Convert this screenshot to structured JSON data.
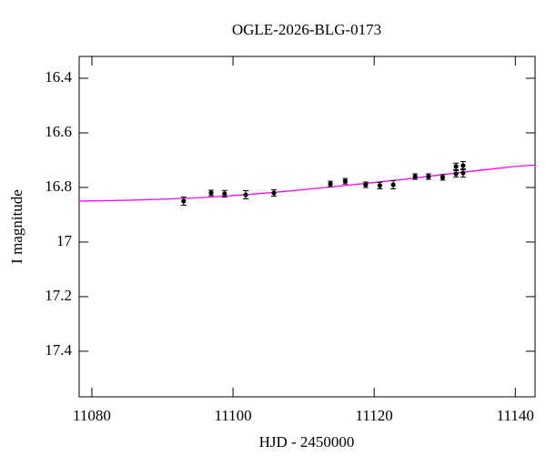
{
  "chart_data": {
    "type": "scatter",
    "title": "OGLE-2026-BLG-0173",
    "xlabel": "HJD - 2450000",
    "ylabel": "I magnitude",
    "xlim": [
      11078.2,
      11142.8
    ],
    "ylim": [
      17.567,
      16.32
    ],
    "xticks": [
      11080,
      11100,
      11120,
      11140
    ],
    "yticks": [
      16.4,
      16.6,
      16.8,
      17,
      17.2,
      17.4
    ],
    "series": [
      {
        "type": "line",
        "color": "#ff00ff",
        "x": [
          11078.2,
          11085,
          11090,
          11095,
          11100,
          11105,
          11110,
          11115,
          11120,
          11125,
          11130,
          11135,
          11140,
          11142.8
        ],
        "values": [
          16.85,
          16.847,
          16.843,
          16.838,
          16.83,
          16.82,
          16.808,
          16.795,
          16.782,
          16.768,
          16.752,
          16.737,
          16.723,
          16.718
        ]
      },
      {
        "type": "errorbar",
        "color": "#000000",
        "x": [
          11093.0,
          11096.9,
          11098.8,
          11101.8,
          11105.8,
          11113.8,
          11115.9,
          11118.8,
          11120.8,
          11122.7,
          11125.8,
          11127.7,
          11129.7,
          11131.6,
          11131.6,
          11132.6,
          11132.6
        ],
        "values": [
          16.85,
          16.82,
          16.823,
          16.827,
          16.82,
          16.787,
          16.777,
          16.79,
          16.793,
          16.79,
          16.76,
          16.76,
          16.763,
          16.723,
          16.75,
          16.72,
          16.747
        ],
        "errors": [
          0.015,
          0.01,
          0.012,
          0.015,
          0.012,
          0.01,
          0.01,
          0.01,
          0.012,
          0.015,
          0.01,
          0.01,
          0.01,
          0.012,
          0.012,
          0.015,
          0.015
        ]
      }
    ]
  }
}
